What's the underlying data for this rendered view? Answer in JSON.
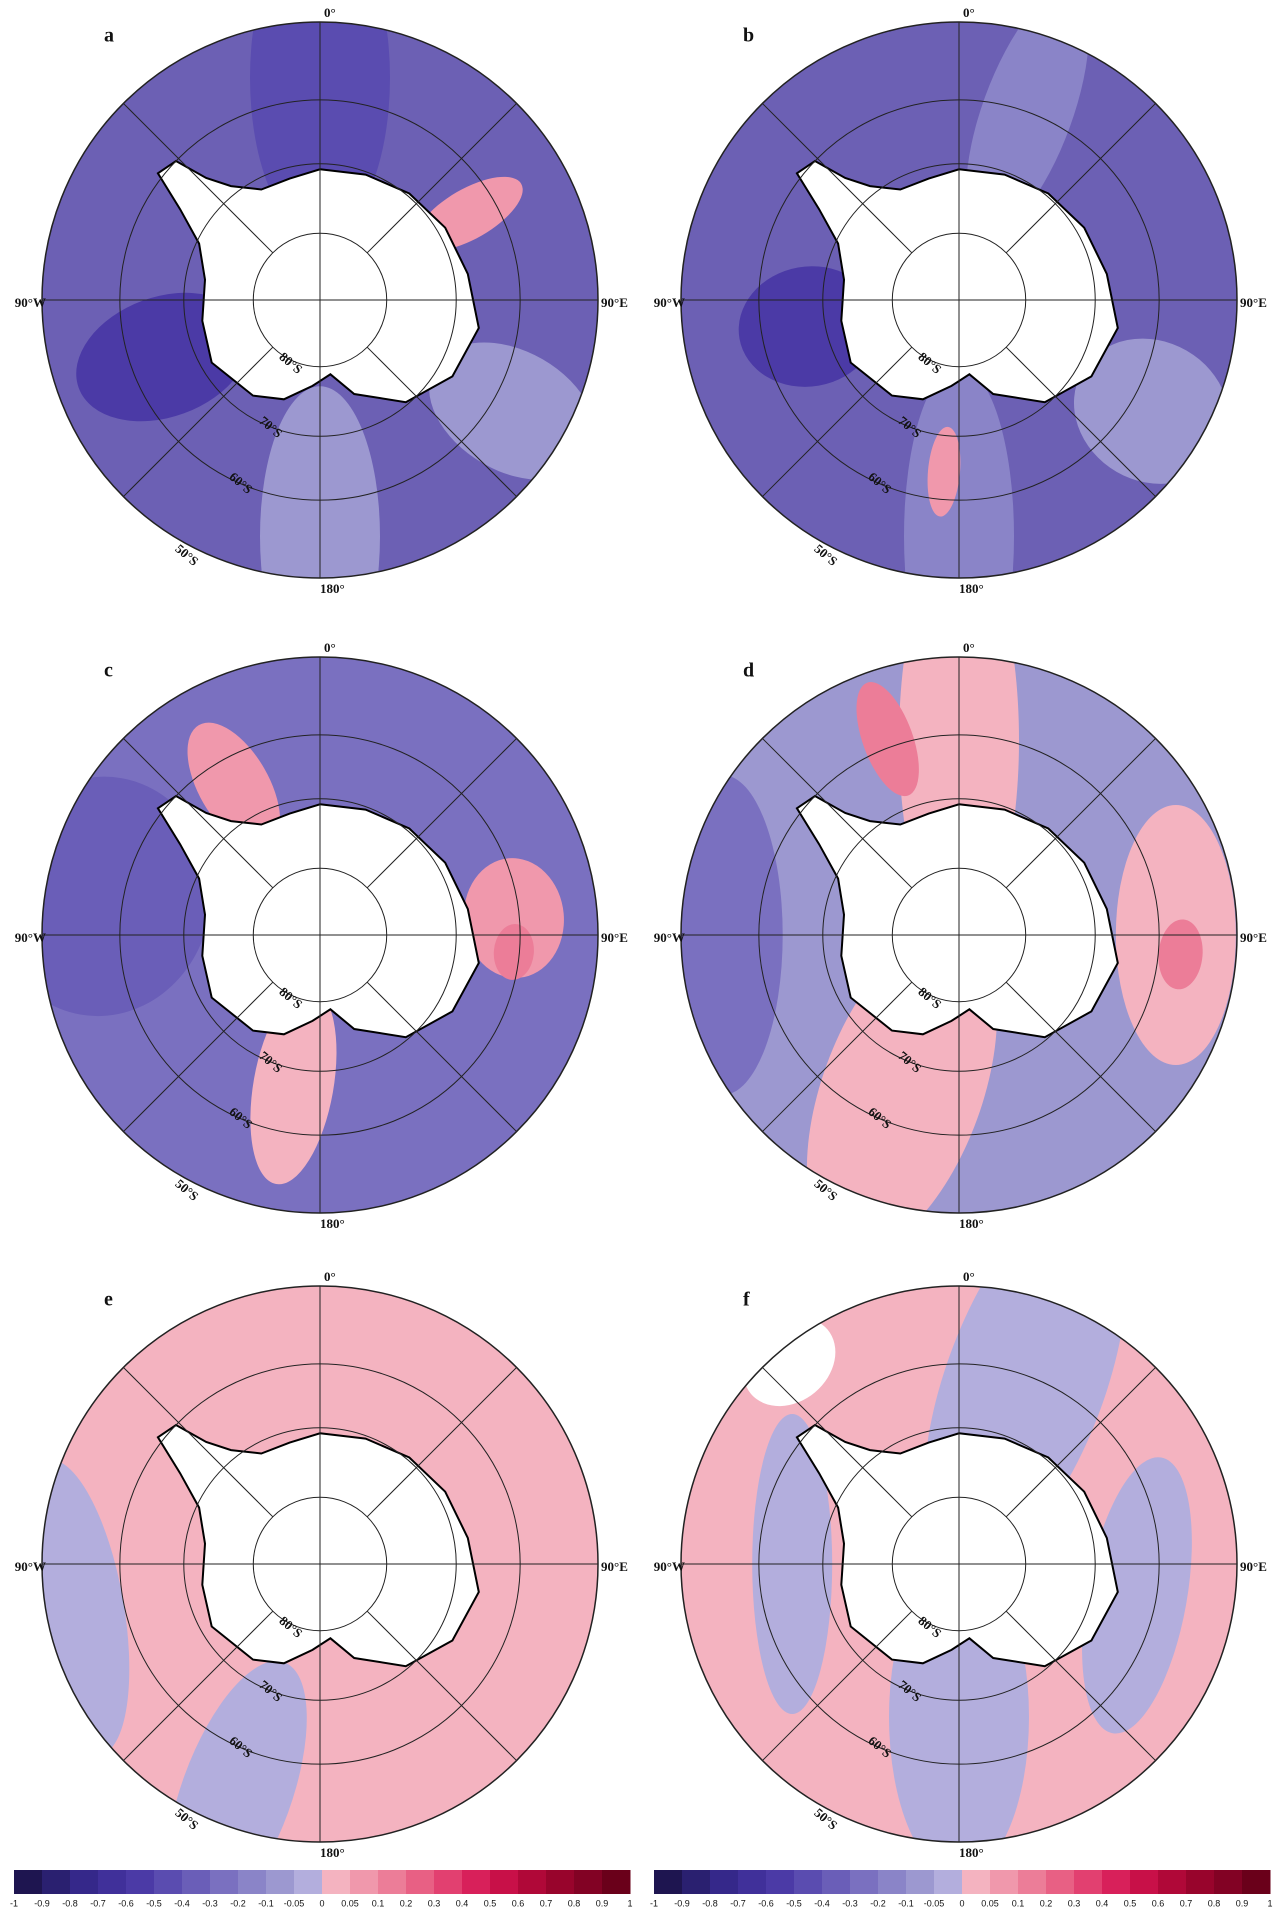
{
  "panels": [
    {
      "label": "a"
    },
    {
      "label": "b"
    },
    {
      "label": "c"
    },
    {
      "label": "d"
    },
    {
      "label": "e"
    },
    {
      "label": "f"
    }
  ],
  "map_labels": {
    "north": "0°",
    "east": "90°E",
    "south": "180°",
    "west": "90°W",
    "lat80": "80°S",
    "lat70": "70°S",
    "lat60": "60°S",
    "lat50": "50°S"
  },
  "colorbars": [
    {
      "ticks": [
        -1,
        -0.9,
        -0.8,
        -0.7,
        -0.6,
        -0.5,
        -0.4,
        -0.3,
        -0.2,
        -0.1,
        -0.05,
        0,
        0.05,
        0.1,
        0.2,
        0.3,
        0.4,
        0.5,
        0.6,
        0.7,
        0.8,
        0.9,
        1
      ]
    },
    {
      "ticks": [
        -1,
        -0.9,
        -0.8,
        -0.7,
        -0.6,
        -0.5,
        -0.4,
        -0.3,
        -0.2,
        -0.1,
        -0.05,
        0,
        0.05,
        0.1,
        0.2,
        0.3,
        0.4,
        0.5,
        0.6,
        0.7,
        0.8,
        0.9,
        1
      ]
    }
  ],
  "colors": [
    "#1e1550",
    "#2a2070",
    "#35288a",
    "#40309a",
    "#4b3aa6",
    "#5a4cb0",
    "#6a5eb8",
    "#7a70c0",
    "#8a84c8",
    "#9c98d0",
    "#b3aedd",
    "#f4b3c0",
    "#f098ac",
    "#ec7d98",
    "#e86084",
    "#e24070",
    "#d8205a",
    "#c81048",
    "#b00838",
    "#98042c",
    "#820224",
    "#6a001a"
  ]
}
